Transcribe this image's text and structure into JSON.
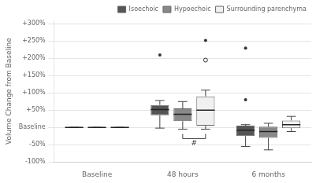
{
  "chart_data": {
    "type": "box",
    "ylabel": "Volume Change from Baseline",
    "categories": [
      "Baseline",
      "48 hours",
      "6 months"
    ],
    "series": [
      {
        "name": "Isoechoic",
        "color": "#555555",
        "values": [
          {
            "median": 0,
            "q1": 0,
            "q3": 0,
            "whislo": 0,
            "whishi": 0,
            "fliers": [],
            "fliers_open": []
          },
          {
            "median": 52,
            "q1": 35,
            "q3": 65,
            "whislo": -2,
            "whishi": 78,
            "fliers": [
              210
            ],
            "fliers_open": []
          },
          {
            "median": -8,
            "q1": -25,
            "q3": 5,
            "whislo": -55,
            "whishi": 8,
            "fliers": [
              80,
              230
            ],
            "fliers_open": []
          }
        ]
      },
      {
        "name": "Hypoechoic",
        "color": "#888888",
        "values": [
          {
            "median": 0,
            "q1": 0,
            "q3": 0,
            "whislo": 0,
            "whishi": 0,
            "fliers": [],
            "fliers_open": []
          },
          {
            "median": 38,
            "q1": 18,
            "q3": 55,
            "whislo": -5,
            "whishi": 75,
            "fliers": [],
            "fliers_open": []
          },
          {
            "median": -12,
            "q1": -30,
            "q3": 2,
            "whislo": -65,
            "whishi": 12,
            "fliers": [],
            "fliers_open": []
          }
        ]
      },
      {
        "name": "Surrounding parenchyma",
        "color": "#f0f0f0",
        "values": [
          {
            "median": 0,
            "q1": 0,
            "q3": 0,
            "whislo": 0,
            "whishi": 0,
            "fliers": [],
            "fliers_open": []
          },
          {
            "median": 50,
            "q1": 5,
            "q3": 90,
            "whislo": -5,
            "whishi": 108,
            "fliers": [
              252
            ],
            "fliers_open": [
              195
            ]
          },
          {
            "median": 8,
            "q1": -2,
            "q3": 20,
            "whislo": -12,
            "whishi": 32,
            "fliers": [],
            "fliers_open": []
          }
        ]
      }
    ],
    "ylim": [
      -100,
      310
    ],
    "yticks": [
      {
        "value": -100,
        "label": "-100%"
      },
      {
        "value": -50,
        "label": "-50%"
      },
      {
        "value": 0,
        "label": "Baseline"
      },
      {
        "value": 50,
        "label": "+50%"
      },
      {
        "value": 100,
        "label": "+100%"
      },
      {
        "value": 150,
        "label": "+150%"
      },
      {
        "value": 200,
        "label": "+200%"
      },
      {
        "value": 250,
        "label": "+250%"
      },
      {
        "value": 300,
        "label": "+300%"
      }
    ],
    "grid": true,
    "legend": "upper right",
    "annotations": [
      {
        "text": "#",
        "category": "48 hours",
        "series": [
          "Hypoechoic",
          "Surrounding parenchyma"
        ]
      }
    ]
  }
}
